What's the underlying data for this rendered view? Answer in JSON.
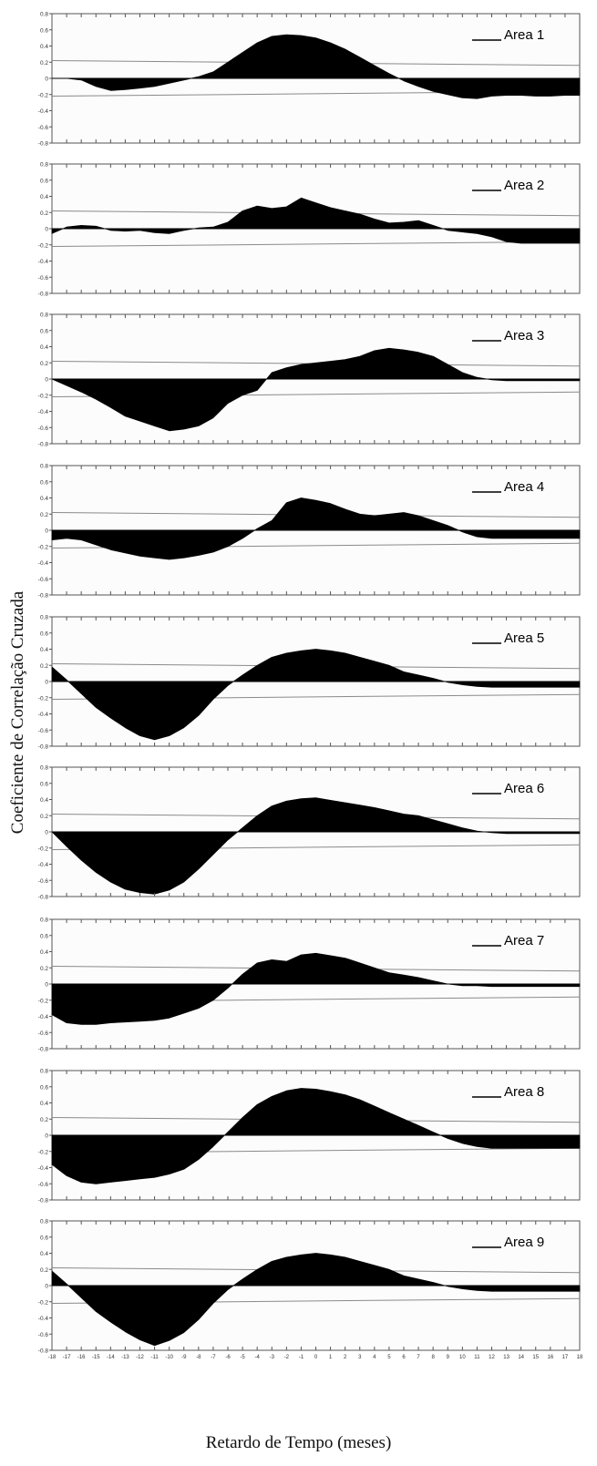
{
  "figure": {
    "ylabel": "Coeficiente de Correlação Cruzada",
    "xlabel": "Retardo de Tempo (meses)"
  },
  "chart_data": [
    {
      "type": "area",
      "title": "Area 1",
      "x_range": [
        -18,
        18
      ],
      "ylim": [
        -0.8,
        0.8
      ],
      "yticks": [
        "0.8",
        "0.6",
        "0.4",
        "0.2",
        "0",
        "-0.2",
        "-0.4",
        "-0.6",
        "-0.8"
      ],
      "values": [
        0,
        0,
        -0.02,
        -0.1,
        -0.15,
        -0.14,
        -0.12,
        -0.1,
        -0.06,
        -0.02,
        0.02,
        0.08,
        0.2,
        0.32,
        0.44,
        0.52,
        0.54,
        0.53,
        0.5,
        0.44,
        0.36,
        0.26,
        0.16,
        0.06,
        -0.03,
        -0.1,
        -0.16,
        -0.2,
        -0.24,
        -0.25,
        -0.22,
        -0.21,
        -0.21,
        -0.22,
        -0.22,
        -0.21,
        -0.21
      ],
      "conf_upper": [
        0.22,
        0.16
      ],
      "conf_lower": [
        -0.22,
        -0.16
      ]
    },
    {
      "type": "area",
      "title": "Area 2",
      "x_range": [
        -18,
        18
      ],
      "ylim": [
        -0.8,
        0.8
      ],
      "yticks": [
        "0.8",
        "0.6",
        "0.4",
        "0.2",
        "0",
        "-0.2",
        "-0.4",
        "-0.6",
        "-0.8"
      ],
      "values": [
        -0.06,
        0.02,
        0.04,
        0.03,
        -0.02,
        -0.03,
        -0.02,
        -0.05,
        -0.06,
        -0.02,
        0.01,
        0.02,
        0.08,
        0.22,
        0.28,
        0.25,
        0.27,
        0.38,
        0.32,
        0.26,
        0.22,
        0.18,
        0.12,
        0.07,
        0.08,
        0.1,
        0.04,
        -0.02,
        -0.04,
        -0.06,
        -0.1,
        -0.16,
        -0.18,
        -0.18,
        -0.18,
        -0.18,
        -0.18
      ],
      "conf_upper": [
        0.22,
        0.16
      ],
      "conf_lower": [
        -0.22,
        -0.16
      ]
    },
    {
      "type": "area",
      "title": "Area 3",
      "x_range": [
        -18,
        18
      ],
      "ylim": [
        -0.8,
        0.8
      ],
      "yticks": [
        "0.8",
        "0.6",
        "0.4",
        "0.2",
        "0",
        "-0.2",
        "-0.4",
        "-0.6",
        "-0.8"
      ],
      "values": [
        0,
        -0.08,
        -0.16,
        -0.25,
        -0.35,
        -0.46,
        -0.52,
        -0.58,
        -0.64,
        -0.62,
        -0.58,
        -0.48,
        -0.3,
        -0.2,
        -0.14,
        0.08,
        0.14,
        0.18,
        0.2,
        0.22,
        0.24,
        0.28,
        0.35,
        0.38,
        0.36,
        0.33,
        0.28,
        0.18,
        0.08,
        0.02,
        -0.01,
        -0.02,
        -0.02,
        -0.02,
        -0.02,
        -0.02,
        -0.02
      ],
      "conf_upper": [
        0.22,
        0.16
      ],
      "conf_lower": [
        -0.22,
        -0.16
      ]
    },
    {
      "type": "area",
      "title": "Area 4",
      "x_range": [
        -18,
        18
      ],
      "ylim": [
        -0.8,
        0.8
      ],
      "yticks": [
        "0.8",
        "0.6",
        "0.4",
        "0.2",
        "0",
        "-0.2",
        "-0.4",
        "-0.6",
        "-0.8"
      ],
      "values": [
        -0.12,
        -0.1,
        -0.12,
        -0.18,
        -0.24,
        -0.28,
        -0.32,
        -0.34,
        -0.36,
        -0.34,
        -0.31,
        -0.27,
        -0.2,
        -0.1,
        0.02,
        0.12,
        0.34,
        0.4,
        0.37,
        0.33,
        0.26,
        0.2,
        0.18,
        0.2,
        0.22,
        0.18,
        0.12,
        0.06,
        -0.02,
        -0.08,
        -0.1,
        -0.1,
        -0.1,
        -0.1,
        -0.1,
        -0.1,
        -0.1
      ],
      "conf_upper": [
        0.22,
        0.16
      ],
      "conf_lower": [
        -0.22,
        -0.16
      ]
    },
    {
      "type": "area",
      "title": "Area 5",
      "x_range": [
        -18,
        18
      ],
      "ylim": [
        -0.8,
        0.8
      ],
      "yticks": [
        "0.8",
        "0.6",
        "0.4",
        "0.2",
        "0",
        "-0.2",
        "-0.4",
        "-0.6",
        "-0.8"
      ],
      "values": [
        0.18,
        0.02,
        -0.15,
        -0.32,
        -0.45,
        -0.57,
        -0.67,
        -0.72,
        -0.67,
        -0.57,
        -0.42,
        -0.22,
        -0.05,
        0.08,
        0.2,
        0.3,
        0.35,
        0.38,
        0.4,
        0.38,
        0.35,
        0.3,
        0.25,
        0.2,
        0.12,
        0.08,
        0.04,
        -0.01,
        -0.04,
        -0.06,
        -0.07,
        -0.07,
        -0.07,
        -0.07,
        -0.07,
        -0.07,
        -0.07
      ],
      "conf_upper": [
        0.22,
        0.16
      ],
      "conf_lower": [
        -0.22,
        -0.16
      ]
    },
    {
      "type": "area",
      "title": "Area 6",
      "x_range": [
        -18,
        18
      ],
      "ylim": [
        -0.8,
        0.8
      ],
      "yticks": [
        "0.8",
        "0.6",
        "0.4",
        "0.2",
        "0",
        "-0.2",
        "-0.4",
        "-0.6",
        "-0.8"
      ],
      "values": [
        0,
        -0.18,
        -0.35,
        -0.5,
        -0.62,
        -0.71,
        -0.75,
        -0.77,
        -0.72,
        -0.62,
        -0.46,
        -0.28,
        -0.1,
        0.05,
        0.2,
        0.32,
        0.38,
        0.41,
        0.42,
        0.39,
        0.36,
        0.33,
        0.3,
        0.26,
        0.22,
        0.2,
        0.15,
        0.1,
        0.05,
        0.01,
        -0.01,
        -0.02,
        -0.02,
        -0.02,
        -0.02,
        -0.02,
        -0.02
      ],
      "conf_upper": [
        0.22,
        0.16
      ],
      "conf_lower": [
        -0.22,
        -0.16
      ]
    },
    {
      "type": "area",
      "title": "Area 7",
      "x_range": [
        -18,
        18
      ],
      "ylim": [
        -0.8,
        0.8
      ],
      "yticks": [
        "0.8",
        "0.6",
        "0.4",
        "0.2",
        "0",
        "-0.2",
        "-0.4",
        "-0.6",
        "-0.8"
      ],
      "values": [
        -0.38,
        -0.48,
        -0.5,
        -0.5,
        -0.48,
        -0.47,
        -0.46,
        -0.45,
        -0.42,
        -0.36,
        -0.3,
        -0.2,
        -0.05,
        0.12,
        0.26,
        0.3,
        0.28,
        0.36,
        0.38,
        0.35,
        0.32,
        0.26,
        0.2,
        0.14,
        0.11,
        0.08,
        0.04,
        0,
        -0.02,
        -0.02,
        -0.03,
        -0.03,
        -0.03,
        -0.03,
        -0.03,
        -0.03,
        -0.03
      ],
      "conf_upper": [
        0.22,
        0.16
      ],
      "conf_lower": [
        -0.22,
        -0.16
      ]
    },
    {
      "type": "area",
      "title": "Area 8",
      "x_range": [
        -18,
        18
      ],
      "ylim": [
        -0.8,
        0.8
      ],
      "yticks": [
        "0.8",
        "0.6",
        "0.4",
        "0.2",
        "0",
        "-0.2",
        "-0.4",
        "-0.6",
        "-0.8"
      ],
      "values": [
        -0.36,
        -0.5,
        -0.58,
        -0.6,
        -0.58,
        -0.56,
        -0.54,
        -0.52,
        -0.48,
        -0.42,
        -0.3,
        -0.14,
        0.04,
        0.22,
        0.38,
        0.48,
        0.55,
        0.58,
        0.57,
        0.54,
        0.5,
        0.44,
        0.36,
        0.28,
        0.2,
        0.12,
        0.04,
        -0.04,
        -0.1,
        -0.14,
        -0.16,
        -0.16,
        -0.16,
        -0.16,
        -0.16,
        -0.16,
        -0.16
      ],
      "conf_upper": [
        0.22,
        0.16
      ],
      "conf_lower": [
        -0.22,
        -0.16
      ]
    },
    {
      "type": "area",
      "title": "Area 9",
      "x_range": [
        -18,
        18
      ],
      "ylim": [
        -0.8,
        0.8
      ],
      "yticks": [
        "0.8",
        "0.6",
        "0.4",
        "0.2",
        "0",
        "-0.2",
        "-0.4",
        "-0.6",
        "-0.8"
      ],
      "xticks": [
        "-18",
        "-17",
        "-16",
        "-15",
        "-14",
        "-13",
        "-12",
        "-11",
        "-10",
        "-9",
        "-8",
        "-7",
        "-6",
        "-5",
        "-4",
        "-3",
        "-2",
        "-1",
        "0",
        "1",
        "2",
        "3",
        "4",
        "5",
        "6",
        "7",
        "8",
        "9",
        "10",
        "11",
        "12",
        "13",
        "14",
        "15",
        "16",
        "17",
        "18"
      ],
      "values": [
        0.18,
        0.02,
        -0.15,
        -0.32,
        -0.45,
        -0.57,
        -0.67,
        -0.74,
        -0.68,
        -0.58,
        -0.42,
        -0.22,
        -0.05,
        0.08,
        0.2,
        0.3,
        0.35,
        0.38,
        0.4,
        0.38,
        0.35,
        0.3,
        0.25,
        0.2,
        0.12,
        0.08,
        0.04,
        -0.01,
        -0.04,
        -0.06,
        -0.07,
        -0.07,
        -0.07,
        -0.07,
        -0.07,
        -0.07,
        -0.07
      ],
      "conf_upper": [
        0.22,
        0.16
      ],
      "conf_lower": [
        -0.22,
        -0.16
      ]
    }
  ]
}
